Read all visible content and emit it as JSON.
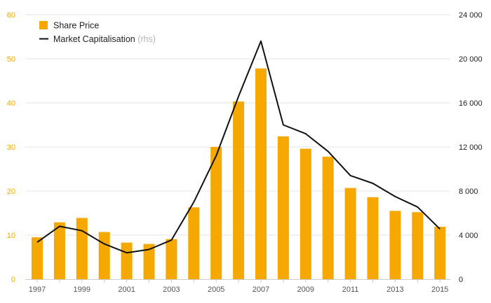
{
  "chart_data": {
    "type": "bar",
    "title": "",
    "xlabel": "",
    "ylabel": "",
    "categories": [
      "1997",
      "1998",
      "1999",
      "2000",
      "2001",
      "2002",
      "2003",
      "2004",
      "2005",
      "2006",
      "2007",
      "2008",
      "2009",
      "2010",
      "2011",
      "2012",
      "2013",
      "2014",
      "2015"
    ],
    "x_tick_labels": [
      "1997",
      "1999",
      "2001",
      "2003",
      "2005",
      "2007",
      "2009",
      "2011",
      "2013",
      "2015"
    ],
    "series": [
      {
        "name": "Share Price",
        "type": "bar",
        "axis": "left",
        "color": "#f5a800",
        "values": [
          9.5,
          12.9,
          13.9,
          10.7,
          8.3,
          8.0,
          9.1,
          16.3,
          30.0,
          40.3,
          47.8,
          32.4,
          29.6,
          27.8,
          20.7,
          18.6,
          15.5,
          15.2,
          11.9
        ]
      },
      {
        "name": "Market Capitalisation",
        "name_suffix": "(rhs)",
        "type": "line",
        "axis": "right",
        "color": "#111111",
        "values": [
          3350,
          4800,
          4400,
          3200,
          2400,
          2700,
          3550,
          7000,
          11200,
          16600,
          21600,
          14000,
          13200,
          11600,
          9400,
          8700,
          7500,
          6550,
          4550
        ]
      }
    ],
    "ylim_left": [
      0,
      60
    ],
    "yticks_left": [
      0,
      10,
      20,
      30,
      40,
      50,
      60
    ],
    "ylim_right": [
      0,
      24000
    ],
    "yticks_right": [
      0,
      4000,
      8000,
      12000,
      16000,
      20000,
      24000
    ],
    "yticks_right_labels": [
      "0",
      "4 000",
      "8 000",
      "12 000",
      "16 000",
      "20 000",
      "24 000"
    ],
    "grid": "horizontal",
    "legend_position": "top-left"
  }
}
